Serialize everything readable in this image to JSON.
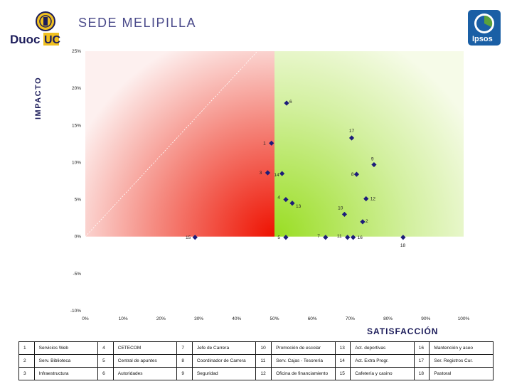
{
  "header": {
    "title": "SEDE MELIPILLA",
    "logo_left_text": "DuocUC",
    "logo_right_text": "Ipsos"
  },
  "colors": {
    "accent": "#1c1c7a",
    "marker": "#1c1c7a",
    "red_zone": "#ee1100",
    "green_zone": "#99dd22"
  },
  "chart_data": {
    "type": "scatter",
    "xlabel": "SATISFACCIÓN",
    "ylabel": "IMPACTO",
    "xlim": [
      0,
      100
    ],
    "ylim": [
      -10,
      25
    ],
    "x_ticks": [
      "0%",
      "10%",
      "20%",
      "30%",
      "40%",
      "50%",
      "60%",
      "70%",
      "80%",
      "90%",
      "100%"
    ],
    "y_ticks": [
      "25%",
      "20%",
      "15%",
      "10%",
      "5%",
      "0%",
      "-5%",
      "-10%"
    ],
    "points": [
      {
        "label": "1",
        "x": 49.2,
        "y": 12.6
      },
      {
        "label": "2",
        "x": 73.3,
        "y": 2.0
      },
      {
        "label": "3",
        "x": 48.2,
        "y": 8.6
      },
      {
        "label": "4",
        "x": 53.0,
        "y": 5.0
      },
      {
        "label": "5",
        "x": 53.0,
        "y": -0.1
      },
      {
        "label": "6",
        "x": 53.2,
        "y": 18.0
      },
      {
        "label": "7",
        "x": 63.5,
        "y": -0.1
      },
      {
        "label": "8",
        "x": 71.7,
        "y": 8.4
      },
      {
        "label": "9",
        "x": 76.3,
        "y": 9.7
      },
      {
        "label": "10",
        "x": 68.5,
        "y": 3.0
      },
      {
        "label": "11",
        "x": 69.3,
        "y": -0.1
      },
      {
        "label": "12",
        "x": 74.2,
        "y": 5.1
      },
      {
        "label": "13",
        "x": 54.7,
        "y": 4.5
      },
      {
        "label": "14",
        "x": 52.0,
        "y": 8.5
      },
      {
        "label": "15",
        "x": 29.0,
        "y": -0.1
      },
      {
        "label": "16",
        "x": 70.8,
        "y": -0.1
      },
      {
        "label": "17",
        "x": 70.4,
        "y": 13.3
      },
      {
        "label": "18",
        "x": 84.0,
        "y": -0.1
      }
    ],
    "reference_line": {
      "from": [
        0,
        0
      ],
      "to": [
        45.5,
        25
      ]
    },
    "grid": false,
    "legend": [
      {
        "n": "1",
        "label": "Servicios Web"
      },
      {
        "n": "4",
        "label": "CETECOM"
      },
      {
        "n": "7",
        "label": "Jefe de Carrera"
      },
      {
        "n": "10",
        "label": "Promoción de escolar"
      },
      {
        "n": "13",
        "label": "Act. deportivas"
      },
      {
        "n": "16",
        "label": "Mantención y aseo"
      },
      {
        "n": "2",
        "label": "Serv. Biblioteca"
      },
      {
        "n": "5",
        "label": "Central de apuntes"
      },
      {
        "n": "8",
        "label": "Coordinador de Carrera"
      },
      {
        "n": "11",
        "label": "Serv. Cajas - Tesorería"
      },
      {
        "n": "14",
        "label": "Act. Extra Progr."
      },
      {
        "n": "17",
        "label": "Ser. Registros Cur."
      },
      {
        "n": "3",
        "label": "Infraestructura"
      },
      {
        "n": "6",
        "label": "Autoridades"
      },
      {
        "n": "9",
        "label": "Seguridad"
      },
      {
        "n": "12",
        "label": "Oficina de financiamiento"
      },
      {
        "n": "15",
        "label": "Cafetería y casino"
      },
      {
        "n": "18",
        "label": "Pastoral"
      }
    ]
  }
}
